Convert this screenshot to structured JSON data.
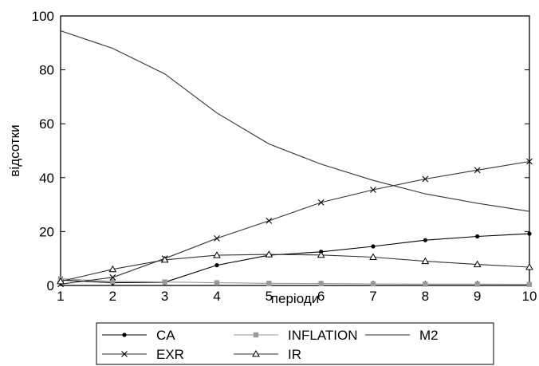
{
  "chart_data": {
    "type": "line",
    "title": "",
    "xlabel": "періоди",
    "ylabel": "відсотки",
    "x": [
      1,
      2,
      3,
      4,
      5,
      6,
      7,
      8,
      9,
      10
    ],
    "xlim": [
      1,
      10
    ],
    "ylim": [
      0,
      100
    ],
    "yticks": [
      0,
      20,
      40,
      60,
      80,
      100
    ],
    "xticks": [
      1,
      2,
      3,
      4,
      5,
      6,
      7,
      8,
      9,
      10
    ],
    "grid": false,
    "legend_position": "bottom",
    "series": [
      {
        "name": "CA",
        "marker": "dot",
        "values": [
          2.0,
          1.0,
          1.2,
          7.5,
          11.2,
          12.5,
          14.5,
          16.8,
          18.2,
          19.2
        ]
      },
      {
        "name": "INFLATION",
        "marker": "square",
        "values": [
          2.5,
          1.5,
          1.3,
          1.0,
          0.8,
          0.7,
          0.6,
          0.5,
          0.5,
          0.4
        ]
      },
      {
        "name": "M2",
        "marker": "none",
        "values": [
          94.5,
          88.0,
          78.5,
          64.0,
          52.5,
          45.0,
          39.0,
          34.0,
          30.5,
          27.5
        ]
      },
      {
        "name": "EXR",
        "marker": "cross",
        "values": [
          0.5,
          3.0,
          10.0,
          17.5,
          24.0,
          30.8,
          35.5,
          39.5,
          42.8,
          46.0
        ]
      },
      {
        "name": "IR",
        "marker": "triangle",
        "values": [
          1.5,
          6.0,
          9.5,
          11.2,
          11.5,
          11.3,
          10.5,
          9.0,
          7.8,
          6.8
        ]
      }
    ]
  }
}
